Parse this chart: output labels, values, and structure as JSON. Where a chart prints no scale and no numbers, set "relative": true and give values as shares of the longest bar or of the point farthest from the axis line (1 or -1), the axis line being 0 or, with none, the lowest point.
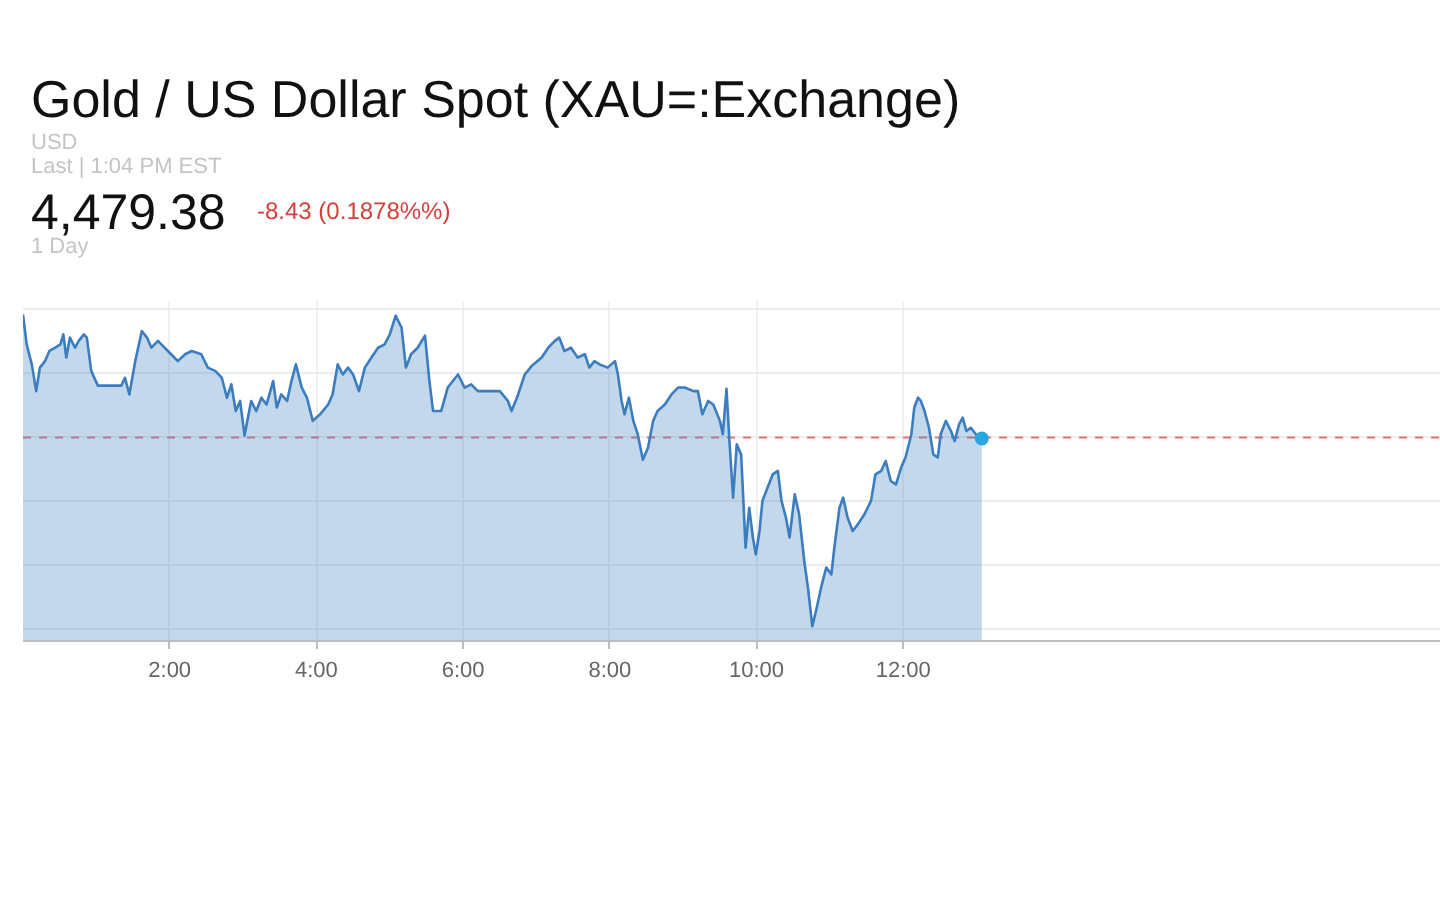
{
  "chart_data": {
    "type": "area",
    "title": "Gold / US Dollar Spot (XAU=:Exchange)",
    "subtitle": "USD",
    "annotations": [
      "Last | 1:04 PM EST",
      "4,479.38",
      "-8.43 (0.1878%%)",
      "1 Day"
    ],
    "relative": true,
    "grid": true,
    "xlim": [
      0,
      19.33
    ],
    "xticks": [
      {
        "value": 2,
        "label": "2:00"
      },
      {
        "value": 4,
        "label": "4:00"
      },
      {
        "value": 6,
        "label": "6:00"
      },
      {
        "value": 8,
        "label": "8:00"
      },
      {
        "value": 10,
        "label": "10:00"
      },
      {
        "value": 12,
        "label": "12:00"
      }
    ],
    "x": [
      0.0,
      0.05,
      0.12,
      0.18,
      0.23,
      0.3,
      0.36,
      0.44,
      0.51,
      0.55,
      0.59,
      0.64,
      0.71,
      0.76,
      0.83,
      0.87,
      0.93,
      1.02,
      1.34,
      1.39,
      1.45,
      1.53,
      1.62,
      1.69,
      1.75,
      1.84,
      1.93,
      2.02,
      2.11,
      2.21,
      2.3,
      2.43,
      2.52,
      2.62,
      2.71,
      2.78,
      2.84,
      2.9,
      2.96,
      3.02,
      3.11,
      3.18,
      3.25,
      3.32,
      3.41,
      3.46,
      3.52,
      3.6,
      3.66,
      3.72,
      3.8,
      3.87,
      3.95,
      4.05,
      4.16,
      4.22,
      4.29,
      4.36,
      4.43,
      4.5,
      4.58,
      4.66,
      4.75,
      4.84,
      4.93,
      5.0,
      5.08,
      5.16,
      5.22,
      5.29,
      5.38,
      5.48,
      5.54,
      5.59,
      5.7,
      5.79,
      5.93,
      6.02,
      6.11,
      6.2,
      6.38,
      6.5,
      6.61,
      6.66,
      6.75,
      6.84,
      6.93,
      7.07,
      7.16,
      7.25,
      7.31,
      7.38,
      7.47,
      7.56,
      7.66,
      7.72,
      7.79,
      7.86,
      7.97,
      8.07,
      8.11,
      8.16,
      8.2,
      8.26,
      8.32,
      8.38,
      8.45,
      8.52,
      8.59,
      8.65,
      8.75,
      8.84,
      8.93,
      9.02,
      9.14,
      9.2,
      9.26,
      9.34,
      9.41,
      9.5,
      9.54,
      9.59,
      9.63,
      9.68,
      9.73,
      9.79,
      9.85,
      9.9,
      9.95,
      9.99,
      10.04,
      10.08,
      10.15,
      10.22,
      10.29,
      10.34,
      10.4,
      10.45,
      10.52,
      10.58,
      10.65,
      10.7,
      10.76,
      10.82,
      10.88,
      10.95,
      11.02,
      11.06,
      11.13,
      11.18,
      11.24,
      11.31,
      11.38,
      11.47,
      11.56,
      11.62,
      11.7,
      11.76,
      11.83,
      11.9,
      11.97,
      12.03,
      12.11,
      12.15,
      12.2,
      12.24,
      12.29,
      12.35,
      12.41,
      12.47,
      12.51,
      12.58,
      12.65,
      12.7,
      12.76,
      12.81,
      12.86,
      12.92,
      12.99,
      13.04,
      13.07
    ],
    "series": [
      {
        "color": "#3b7dbf",
        "values": [
          1.0,
          0.908,
          0.847,
          0.765,
          0.837,
          0.857,
          0.888,
          0.898,
          0.908,
          0.939,
          0.868,
          0.929,
          0.898,
          0.919,
          0.939,
          0.929,
          0.827,
          0.782,
          0.782,
          0.806,
          0.755,
          0.857,
          0.949,
          0.929,
          0.898,
          0.919,
          0.898,
          0.878,
          0.857,
          0.878,
          0.888,
          0.878,
          0.837,
          0.827,
          0.806,
          0.745,
          0.786,
          0.704,
          0.735,
          0.629,
          0.735,
          0.704,
          0.745,
          0.724,
          0.796,
          0.715,
          0.755,
          0.735,
          0.796,
          0.847,
          0.776,
          0.745,
          0.674,
          0.694,
          0.724,
          0.755,
          0.847,
          0.816,
          0.837,
          0.816,
          0.765,
          0.837,
          0.868,
          0.898,
          0.908,
          0.939,
          0.996,
          0.96,
          0.837,
          0.878,
          0.898,
          0.935,
          0.796,
          0.704,
          0.704,
          0.776,
          0.816,
          0.776,
          0.786,
          0.765,
          0.765,
          0.765,
          0.735,
          0.704,
          0.755,
          0.816,
          0.841,
          0.868,
          0.898,
          0.919,
          0.929,
          0.888,
          0.898,
          0.868,
          0.878,
          0.837,
          0.857,
          0.847,
          0.837,
          0.857,
          0.816,
          0.735,
          0.694,
          0.745,
          0.674,
          0.633,
          0.555,
          0.592,
          0.674,
          0.704,
          0.724,
          0.755,
          0.776,
          0.776,
          0.765,
          0.765,
          0.694,
          0.735,
          0.724,
          0.674,
          0.633,
          0.772,
          0.612,
          0.439,
          0.602,
          0.571,
          0.286,
          0.408,
          0.317,
          0.265,
          0.337,
          0.429,
          0.47,
          0.51,
          0.521,
          0.429,
          0.378,
          0.317,
          0.449,
          0.388,
          0.245,
          0.164,
          0.045,
          0.102,
          0.164,
          0.225,
          0.204,
          0.286,
          0.408,
          0.439,
          0.378,
          0.337,
          0.357,
          0.388,
          0.429,
          0.51,
          0.521,
          0.551,
          0.49,
          0.479,
          0.531,
          0.562,
          0.633,
          0.715,
          0.745,
          0.735,
          0.704,
          0.653,
          0.571,
          0.562,
          0.633,
          0.674,
          0.643,
          0.612,
          0.663,
          0.684,
          0.643,
          0.653,
          0.633,
          0.629,
          0.62
        ]
      },
      {
        "type": "scatter",
        "color": "#29a8e0",
        "x": [
          13.07
        ],
        "values": [
          0.62
        ]
      }
    ],
    "ref_lines": [
      {
        "axis": "y",
        "value": 0.623,
        "color": "#e57373",
        "line_style": "dashed"
      }
    ]
  }
}
